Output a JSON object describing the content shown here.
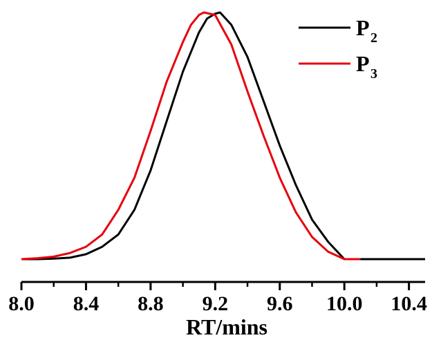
{
  "chart_data": {
    "type": "line",
    "title": "",
    "xlabel": "RT/mins",
    "ylabel": "",
    "xlim": [
      8.0,
      10.5
    ],
    "ylim": [
      0,
      1.0
    ],
    "x_ticks": [
      "8.0",
      "8.4",
      "8.8",
      "9.2",
      "9.6",
      "10.0",
      "10.4"
    ],
    "x_tick_values": [
      8.0,
      8.4,
      8.8,
      9.2,
      9.6,
      10.0,
      10.4
    ],
    "grid": false,
    "legend_position": "top-right",
    "series": [
      {
        "name": "P2",
        "legend_main": "P",
        "legend_sub": "2",
        "color": "#000000",
        "x": [
          8.0,
          8.1,
          8.2,
          8.3,
          8.4,
          8.5,
          8.6,
          8.7,
          8.8,
          8.9,
          9.0,
          9.1,
          9.15,
          9.2,
          9.23,
          9.3,
          9.4,
          9.5,
          9.6,
          9.7,
          9.8,
          9.9,
          10.0,
          10.1,
          10.2,
          10.3,
          10.4,
          10.5
        ],
        "y": [
          0.0,
          0.0,
          0.002,
          0.006,
          0.02,
          0.05,
          0.1,
          0.2,
          0.36,
          0.56,
          0.76,
          0.92,
          0.975,
          0.995,
          1.0,
          0.95,
          0.82,
          0.64,
          0.46,
          0.3,
          0.16,
          0.07,
          0.0,
          0.0,
          0.0,
          0.0,
          0.0,
          0.0
        ]
      },
      {
        "name": "P3",
        "legend_main": "P",
        "legend_sub": "3",
        "color": "#e8000b",
        "x": [
          8.0,
          8.1,
          8.2,
          8.3,
          8.4,
          8.5,
          8.6,
          8.7,
          8.8,
          8.9,
          9.0,
          9.05,
          9.1,
          9.13,
          9.2,
          9.3,
          9.4,
          9.5,
          9.6,
          9.7,
          9.8,
          9.9,
          10.0,
          10.1
        ],
        "y": [
          0.0,
          0.004,
          0.01,
          0.025,
          0.05,
          0.1,
          0.2,
          0.33,
          0.52,
          0.72,
          0.88,
          0.95,
          0.99,
          1.0,
          0.99,
          0.87,
          0.68,
          0.5,
          0.33,
          0.19,
          0.09,
          0.03,
          0.0,
          0.0
        ]
      }
    ]
  }
}
